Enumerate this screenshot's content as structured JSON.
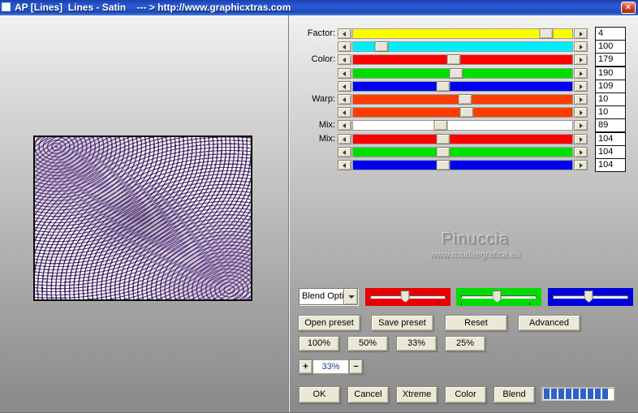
{
  "window": {
    "title": "AP [Lines]  Lines - Satin    --- > http://www.graphicxtras.com",
    "close_glyph": "×"
  },
  "sliders": {
    "rows": [
      {
        "label": "Factor:",
        "color": "#ffff00",
        "value": "4",
        "thumb_left": "88%"
      },
      {
        "label": "",
        "color": "#00eeff",
        "value": "100",
        "thumb_left": "13%"
      },
      {
        "label": "Color:",
        "color": "#ff0000",
        "value": "179",
        "thumb_left": "46%"
      },
      {
        "label": "",
        "color": "#00e000",
        "value": "190",
        "thumb_left": "47%"
      },
      {
        "label": "",
        "color": "#0000f0",
        "value": "109",
        "thumb_left": "41%"
      },
      {
        "label": "Warp:",
        "color": "#ff3c00",
        "value": "10",
        "thumb_left": "51%"
      },
      {
        "label": "",
        "color": "#ff3c00",
        "value": "10",
        "thumb_left": "52%"
      },
      {
        "label": "Mix:",
        "color": "#ffffff",
        "value": "89",
        "thumb_left": "40%"
      },
      {
        "label": "Mix:",
        "color": "#ff0000",
        "value": "104",
        "thumb_left": "41%"
      },
      {
        "label": "",
        "color": "#00e000",
        "value": "104",
        "thumb_left": "41%"
      },
      {
        "label": "",
        "color": "#0000f0",
        "value": "104",
        "thumb_left": "41%"
      }
    ]
  },
  "watermark": {
    "name": "Pinuccia",
    "site": "www.maidiregrafica.eu"
  },
  "blend_dropdown": {
    "value": "Blend Opti"
  },
  "rgb_sliders": [
    {
      "name": "red",
      "color": "#e80000",
      "thumb_left": "47%"
    },
    {
      "name": "green",
      "color": "#00dc00",
      "thumb_left": "48%"
    },
    {
      "name": "blue",
      "color": "#0000dc",
      "thumb_left": "48%"
    }
  ],
  "buttons": {
    "presets": [
      "Open preset",
      "Save preset",
      "Reset",
      "Advanced"
    ],
    "zoom": [
      "100%",
      "50%",
      "33%",
      "25%"
    ],
    "actions": [
      "OK",
      "Cancel",
      "Xtreme",
      "Color",
      "Blend"
    ]
  },
  "zoom_control": {
    "plus": "+",
    "value": "33%",
    "minus": "−"
  },
  "progress": {
    "segments": 9
  }
}
